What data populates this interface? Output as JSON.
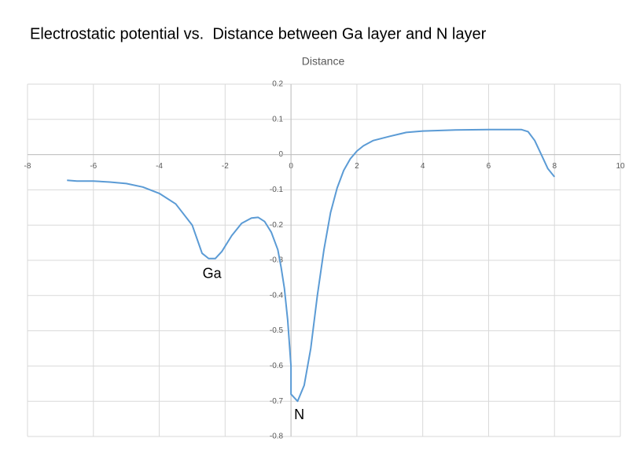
{
  "chart_data": {
    "type": "line",
    "title": "Electrostatic potential vs.  Distance between Ga layer and N layer",
    "x_label": "Distance",
    "annotations": [
      {
        "text": "Ga",
        "x": -2.4,
        "y": -0.34
      },
      {
        "text": "N",
        "x": 0.25,
        "y": -0.74
      }
    ],
    "series": [
      {
        "name": "Electrostatic potential",
        "color": "#5b9bd5",
        "x": [
          -6.8,
          -6.5,
          -6,
          -5.5,
          -5,
          -4.5,
          -4,
          -3.5,
          -3,
          -2.7,
          -2.5,
          -2.3,
          -2.1,
          -1.8,
          -1.5,
          -1.2,
          -1,
          -0.8,
          -0.6,
          -0.4,
          -0.3,
          -0.2,
          -0.1,
          0,
          0,
          0.2,
          0.4,
          0.6,
          0.8,
          1,
          1.2,
          1.4,
          1.6,
          1.8,
          2,
          2.2,
          2.5,
          3,
          3.5,
          4,
          5,
          6,
          7,
          7.2,
          7.4,
          7.6,
          7.8,
          8
        ],
        "values": [
          -0.073,
          -0.075,
          -0.075,
          -0.078,
          -0.082,
          -0.092,
          -0.11,
          -0.14,
          -0.2,
          -0.28,
          -0.295,
          -0.295,
          -0.275,
          -0.23,
          -0.195,
          -0.18,
          -0.178,
          -0.19,
          -0.22,
          -0.27,
          -0.32,
          -0.38,
          -0.47,
          -0.6,
          -0.68,
          -0.7,
          -0.655,
          -0.55,
          -0.4,
          -0.27,
          -0.165,
          -0.095,
          -0.045,
          -0.012,
          0.01,
          0.025,
          0.04,
          0.052,
          0.063,
          0.067,
          0.07,
          0.071,
          0.071,
          0.065,
          0.04,
          0.0,
          -0.04,
          -0.063
        ]
      }
    ],
    "xlim": [
      -8,
      10
    ],
    "xticks": [
      -8,
      -6,
      -4,
      -2,
      0,
      2,
      4,
      6,
      8,
      10
    ],
    "ylim": [
      -0.8,
      0.2
    ],
    "yticks": [
      0.2,
      0.1,
      0,
      -0.1,
      -0.2,
      -0.3,
      -0.4,
      -0.5,
      -0.6,
      -0.7,
      -0.8
    ],
    "grid": true
  }
}
